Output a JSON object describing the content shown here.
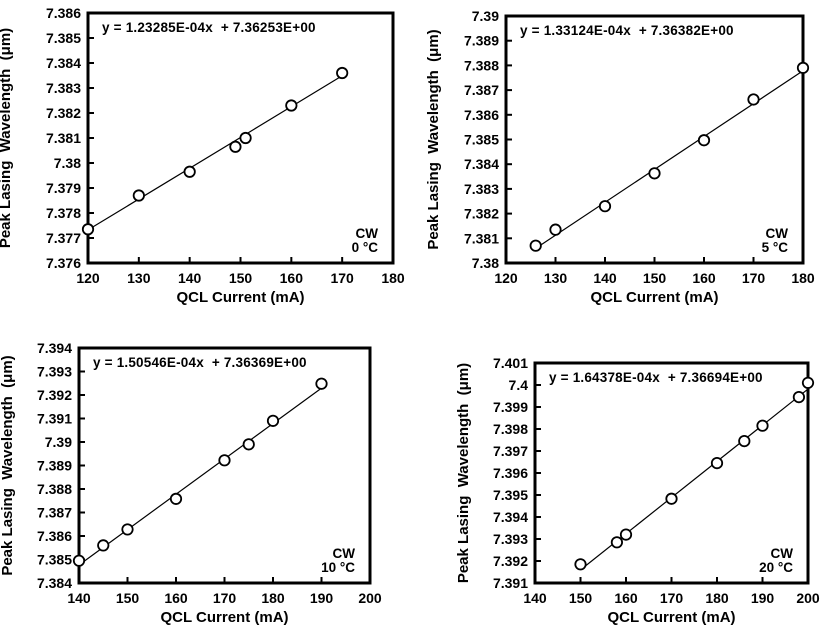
{
  "figure": {
    "background": "#ffffff",
    "ink_color": "#000000",
    "description_labels": {
      "x_axis": "QCL Current (mA)",
      "y_axis": "Peak Lasing  Wavelength  (μm)"
    }
  },
  "chart_data": [
    {
      "type": "scatter",
      "panel": "cw-0c",
      "equation": "y = 1.23285E-04x  + 7.36253E+00",
      "fit": {
        "slope": 0.000123285,
        "intercept": 7.36253,
        "x_range": [
          120,
          170
        ]
      },
      "condition": "CW",
      "temperature": "0 °C",
      "xlabel": "QCL Current (mA)",
      "ylabel": "Peak Lasing  Wavelength  (μm)",
      "xlim": [
        120,
        180
      ],
      "ylim": [
        7.376,
        7.386
      ],
      "xticks": [
        120,
        130,
        140,
        150,
        160,
        170,
        180
      ],
      "ytick_labels": [
        "7.376",
        "7.377",
        "7.378",
        "7.379",
        "7.38",
        "7.381",
        "7.382",
        "7.383",
        "7.384",
        "7.385",
        "7.386"
      ],
      "grid": false,
      "legend": "none",
      "marker": "open-circle",
      "points": [
        [
          120,
          7.37735
        ],
        [
          130,
          7.3787
        ],
        [
          140,
          7.37965
        ],
        [
          149,
          7.38065
        ],
        [
          151,
          7.381
        ],
        [
          160,
          7.3823
        ],
        [
          170,
          7.3836
        ]
      ]
    },
    {
      "type": "scatter",
      "panel": "cw-5c",
      "equation": "y = 1.33124E-04x  + 7.36382E+00",
      "fit": {
        "slope": 0.000133124,
        "intercept": 7.36382,
        "x_range": [
          126,
          180
        ]
      },
      "condition": "CW",
      "temperature": "5 °C",
      "xlabel": "QCL Current (mA)",
      "ylabel": "Peak Lasing  Wavelength  (μm)",
      "xlim": [
        120,
        180
      ],
      "ylim": [
        7.38,
        7.39
      ],
      "xticks": [
        120,
        130,
        140,
        150,
        160,
        170,
        180
      ],
      "ytick_labels": [
        "7.38",
        "7.381",
        "7.382",
        "7.383",
        "7.384",
        "7.385",
        "7.386",
        "7.387",
        "7.388",
        "7.389",
        "7.39"
      ],
      "grid": false,
      "legend": "none",
      "marker": "open-circle",
      "points": [
        [
          126,
          7.3807
        ],
        [
          130,
          7.38135
        ],
        [
          140,
          7.3823
        ],
        [
          150,
          7.38363
        ],
        [
          160,
          7.38497
        ],
        [
          170,
          7.38662
        ],
        [
          180,
          7.3879
        ]
      ]
    },
    {
      "type": "scatter",
      "panel": "cw-10c",
      "equation": "y = 1.50546E-04x  + 7.36369E+00",
      "fit": {
        "slope": 0.000150546,
        "intercept": 7.36369,
        "x_range": [
          140,
          190
        ]
      },
      "condition": "CW",
      "temperature": "10 °C",
      "xlabel": "QCL Current (mA)",
      "ylabel": "Peak Lasing  Wavelength  (μm)",
      "xlim": [
        140,
        200
      ],
      "ylim": [
        7.384,
        7.394
      ],
      "xticks": [
        140,
        150,
        160,
        170,
        180,
        190,
        200
      ],
      "ytick_labels": [
        "7.384",
        "7.385",
        "7.386",
        "7.387",
        "7.388",
        "7.389",
        "7.39",
        "7.391",
        "7.392",
        "7.393",
        "7.394"
      ],
      "grid": false,
      "legend": "none",
      "marker": "open-circle",
      "points": [
        [
          140,
          7.38495
        ],
        [
          145,
          7.3856
        ],
        [
          150,
          7.38628
        ],
        [
          160,
          7.38758
        ],
        [
          170,
          7.38922
        ],
        [
          175,
          7.3899
        ],
        [
          180,
          7.3909
        ],
        [
          190,
          7.39248
        ]
      ]
    },
    {
      "type": "scatter",
      "panel": "cw-20c",
      "equation": "y = 1.64378E-04x  + 7.36694E+00",
      "fit": {
        "slope": 0.000164378,
        "intercept": 7.36694,
        "x_range": [
          150,
          200
        ]
      },
      "condition": "CW",
      "temperature": "20 °C",
      "xlabel": "QCL Current (mA)",
      "ylabel": "Peak Lasing  Wavelength  (μm)",
      "xlim": [
        140,
        200
      ],
      "ylim": [
        7.391,
        7.401
      ],
      "xticks": [
        140,
        150,
        160,
        170,
        180,
        190,
        200
      ],
      "ytick_labels": [
        "7.391",
        "7.392",
        "7.393",
        "7.394",
        "7.395",
        "7.396",
        "7.397",
        "7.398",
        "7.399",
        "7.4",
        "7.401"
      ],
      "grid": false,
      "legend": "none",
      "marker": "open-circle",
      "points": [
        [
          150,
          7.39185
        ],
        [
          158,
          7.39285
        ],
        [
          160,
          7.3932
        ],
        [
          170,
          7.39483
        ],
        [
          180,
          7.39645
        ],
        [
          186,
          7.39745
        ],
        [
          190,
          7.39815
        ],
        [
          198,
          7.39945
        ],
        [
          200,
          7.4001
        ]
      ]
    }
  ]
}
